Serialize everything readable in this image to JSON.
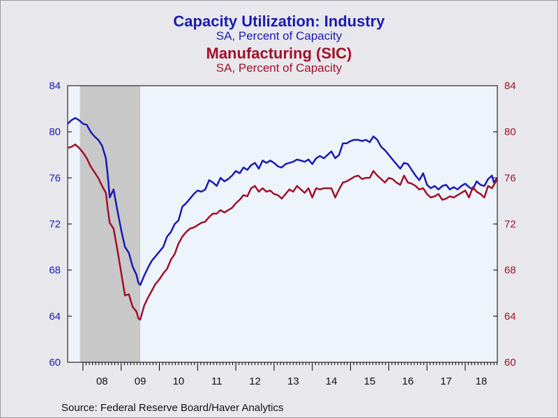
{
  "titles": {
    "line1": "Capacity Utilization: Industry",
    "line2": "SA, Percent of Capacity",
    "line3": "Manufacturing (SIC)",
    "line4": "SA, Percent of Capacity"
  },
  "source": "Source:  Federal Reserve Board/Haver Analytics",
  "colors": {
    "industry": "#1a1ab4",
    "manufacturing": "#a0102a",
    "plot_bg": "#eef4fc",
    "recession": "#c8c8c8"
  },
  "chart_data": {
    "type": "line",
    "x_ticks": [
      "08",
      "09",
      "10",
      "11",
      "12",
      "13",
      "14",
      "15",
      "16",
      "17",
      "18"
    ],
    "x_range": [
      2007.6,
      2018.84
    ],
    "left_axis": {
      "ticks": [
        "60",
        "64",
        "68",
        "72",
        "76",
        "80",
        "84"
      ],
      "ylim": [
        60,
        84
      ]
    },
    "right_axis": {
      "ticks": [
        "60",
        "64",
        "68",
        "72",
        "76",
        "80",
        "84"
      ],
      "ylim": [
        60,
        84
      ]
    },
    "recession": [
      2007.92,
      2009.5
    ],
    "series": [
      {
        "name": "Capacity Utilization: Industry",
        "axis": "left",
        "points": [
          [
            2007.6,
            80.7
          ],
          [
            2007.7,
            81.0
          ],
          [
            2007.8,
            81.2
          ],
          [
            2007.9,
            81.0
          ],
          [
            2008.0,
            80.7
          ],
          [
            2008.1,
            80.6
          ],
          [
            2008.2,
            80.0
          ],
          [
            2008.3,
            79.6
          ],
          [
            2008.4,
            79.3
          ],
          [
            2008.5,
            78.8
          ],
          [
            2008.6,
            77.7
          ],
          [
            2008.65,
            76.2
          ],
          [
            2008.7,
            74.3
          ],
          [
            2008.8,
            75.0
          ],
          [
            2008.9,
            73.2
          ],
          [
            2009.0,
            71.5
          ],
          [
            2009.1,
            70.0
          ],
          [
            2009.2,
            69.5
          ],
          [
            2009.3,
            68.3
          ],
          [
            2009.4,
            67.6
          ],
          [
            2009.45,
            66.9
          ],
          [
            2009.5,
            66.7
          ],
          [
            2009.6,
            67.5
          ],
          [
            2009.7,
            68.2
          ],
          [
            2009.8,
            68.8
          ],
          [
            2009.9,
            69.2
          ],
          [
            2010.0,
            69.6
          ],
          [
            2010.1,
            70.0
          ],
          [
            2010.2,
            70.9
          ],
          [
            2010.3,
            71.3
          ],
          [
            2010.4,
            72.0
          ],
          [
            2010.5,
            72.3
          ],
          [
            2010.6,
            73.5
          ],
          [
            2010.7,
            73.8
          ],
          [
            2010.8,
            74.2
          ],
          [
            2010.9,
            74.6
          ],
          [
            2011.0,
            74.9
          ],
          [
            2011.1,
            74.8
          ],
          [
            2011.2,
            75.0
          ],
          [
            2011.3,
            75.8
          ],
          [
            2011.4,
            75.6
          ],
          [
            2011.5,
            75.3
          ],
          [
            2011.6,
            76.0
          ],
          [
            2011.7,
            75.7
          ],
          [
            2011.8,
            75.9
          ],
          [
            2011.9,
            76.2
          ],
          [
            2012.0,
            76.6
          ],
          [
            2012.1,
            76.4
          ],
          [
            2012.2,
            76.9
          ],
          [
            2012.3,
            76.7
          ],
          [
            2012.4,
            77.1
          ],
          [
            2012.5,
            77.3
          ],
          [
            2012.6,
            76.8
          ],
          [
            2012.7,
            77.5
          ],
          [
            2012.8,
            77.3
          ],
          [
            2012.9,
            77.5
          ],
          [
            2013.0,
            77.3
          ],
          [
            2013.1,
            77.0
          ],
          [
            2013.2,
            76.9
          ],
          [
            2013.3,
            77.2
          ],
          [
            2013.4,
            77.3
          ],
          [
            2013.5,
            77.4
          ],
          [
            2013.6,
            77.6
          ],
          [
            2013.7,
            77.5
          ],
          [
            2013.8,
            77.4
          ],
          [
            2013.9,
            77.6
          ],
          [
            2014.0,
            77.2
          ],
          [
            2014.1,
            77.7
          ],
          [
            2014.2,
            77.9
          ],
          [
            2014.3,
            77.7
          ],
          [
            2014.4,
            78.0
          ],
          [
            2014.5,
            78.3
          ],
          [
            2014.6,
            77.7
          ],
          [
            2014.7,
            78.0
          ],
          [
            2014.8,
            79.0
          ],
          [
            2014.9,
            79.0
          ],
          [
            2015.0,
            79.2
          ],
          [
            2015.1,
            79.3
          ],
          [
            2015.2,
            79.3
          ],
          [
            2015.3,
            79.2
          ],
          [
            2015.4,
            79.3
          ],
          [
            2015.5,
            79.1
          ],
          [
            2015.6,
            79.6
          ],
          [
            2015.7,
            79.3
          ],
          [
            2015.8,
            78.7
          ],
          [
            2015.9,
            78.4
          ],
          [
            2016.0,
            78.0
          ],
          [
            2016.1,
            77.6
          ],
          [
            2016.2,
            77.2
          ],
          [
            2016.3,
            76.8
          ],
          [
            2016.4,
            77.3
          ],
          [
            2016.5,
            77.2
          ],
          [
            2016.6,
            76.7
          ],
          [
            2016.7,
            76.2
          ],
          [
            2016.8,
            75.8
          ],
          [
            2016.9,
            76.4
          ],
          [
            2017.0,
            75.4
          ],
          [
            2017.1,
            75.1
          ],
          [
            2017.2,
            75.3
          ],
          [
            2017.3,
            75.0
          ],
          [
            2017.4,
            75.3
          ],
          [
            2017.5,
            75.4
          ],
          [
            2017.6,
            75.0
          ],
          [
            2017.7,
            75.2
          ],
          [
            2017.8,
            75.0
          ],
          [
            2017.9,
            75.3
          ],
          [
            2018.0,
            75.5
          ],
          [
            2018.1,
            75.2
          ],
          [
            2018.2,
            75.0
          ],
          [
            2018.3,
            75.7
          ],
          [
            2018.4,
            75.4
          ],
          [
            2018.5,
            75.3
          ],
          [
            2018.6,
            75.9
          ],
          [
            2018.7,
            76.2
          ],
          [
            2018.75,
            75.6
          ],
          [
            2018.84,
            76.0
          ]
        ]
      },
      {
        "name": "Manufacturing (SIC)",
        "axis": "right",
        "points": [
          [
            2007.6,
            78.6
          ],
          [
            2007.7,
            78.7
          ],
          [
            2007.8,
            78.9
          ],
          [
            2007.9,
            78.6
          ],
          [
            2008.0,
            78.2
          ],
          [
            2008.1,
            77.7
          ],
          [
            2008.2,
            77.0
          ],
          [
            2008.3,
            76.5
          ],
          [
            2008.4,
            76.0
          ],
          [
            2008.5,
            75.3
          ],
          [
            2008.6,
            74.7
          ],
          [
            2008.65,
            73.3
          ],
          [
            2008.7,
            72.1
          ],
          [
            2008.8,
            71.6
          ],
          [
            2008.9,
            69.8
          ],
          [
            2009.0,
            67.8
          ],
          [
            2009.1,
            65.8
          ],
          [
            2009.2,
            65.9
          ],
          [
            2009.3,
            64.8
          ],
          [
            2009.4,
            64.4
          ],
          [
            2009.45,
            63.8
          ],
          [
            2009.5,
            63.7
          ],
          [
            2009.6,
            64.9
          ],
          [
            2009.7,
            65.6
          ],
          [
            2009.8,
            66.2
          ],
          [
            2009.9,
            66.8
          ],
          [
            2010.0,
            67.2
          ],
          [
            2010.1,
            67.7
          ],
          [
            2010.2,
            68.1
          ],
          [
            2010.3,
            68.9
          ],
          [
            2010.4,
            69.4
          ],
          [
            2010.5,
            70.3
          ],
          [
            2010.6,
            70.9
          ],
          [
            2010.7,
            71.3
          ],
          [
            2010.8,
            71.6
          ],
          [
            2010.9,
            71.7
          ],
          [
            2011.0,
            71.9
          ],
          [
            2011.1,
            72.1
          ],
          [
            2011.2,
            72.2
          ],
          [
            2011.3,
            72.6
          ],
          [
            2011.4,
            72.9
          ],
          [
            2011.5,
            72.9
          ],
          [
            2011.6,
            73.2
          ],
          [
            2011.7,
            73.0
          ],
          [
            2011.8,
            73.2
          ],
          [
            2011.9,
            73.4
          ],
          [
            2012.0,
            73.8
          ],
          [
            2012.1,
            74.1
          ],
          [
            2012.2,
            74.5
          ],
          [
            2012.3,
            74.4
          ],
          [
            2012.4,
            75.1
          ],
          [
            2012.5,
            75.3
          ],
          [
            2012.6,
            74.8
          ],
          [
            2012.7,
            75.1
          ],
          [
            2012.8,
            74.8
          ],
          [
            2012.9,
            74.9
          ],
          [
            2013.0,
            74.6
          ],
          [
            2013.1,
            74.5
          ],
          [
            2013.2,
            74.2
          ],
          [
            2013.3,
            74.6
          ],
          [
            2013.4,
            75.0
          ],
          [
            2013.5,
            74.8
          ],
          [
            2013.6,
            75.3
          ],
          [
            2013.7,
            75.0
          ],
          [
            2013.8,
            74.7
          ],
          [
            2013.9,
            75.1
          ],
          [
            2014.0,
            74.3
          ],
          [
            2014.1,
            75.1
          ],
          [
            2014.2,
            75.0
          ],
          [
            2014.3,
            75.1
          ],
          [
            2014.4,
            75.1
          ],
          [
            2014.5,
            75.1
          ],
          [
            2014.6,
            74.3
          ],
          [
            2014.7,
            75.0
          ],
          [
            2014.8,
            75.6
          ],
          [
            2014.9,
            75.7
          ],
          [
            2015.0,
            75.9
          ],
          [
            2015.1,
            76.1
          ],
          [
            2015.2,
            76.2
          ],
          [
            2015.3,
            75.9
          ],
          [
            2015.4,
            76.0
          ],
          [
            2015.5,
            76.0
          ],
          [
            2015.6,
            76.6
          ],
          [
            2015.7,
            76.2
          ],
          [
            2015.8,
            75.9
          ],
          [
            2015.9,
            75.6
          ],
          [
            2016.0,
            76.0
          ],
          [
            2016.1,
            75.9
          ],
          [
            2016.2,
            75.6
          ],
          [
            2016.3,
            75.4
          ],
          [
            2016.4,
            76.2
          ],
          [
            2016.5,
            75.6
          ],
          [
            2016.6,
            75.5
          ],
          [
            2016.7,
            75.3
          ],
          [
            2016.8,
            75.0
          ],
          [
            2016.9,
            75.1
          ],
          [
            2017.0,
            74.6
          ],
          [
            2017.1,
            74.3
          ],
          [
            2017.2,
            74.4
          ],
          [
            2017.3,
            74.6
          ],
          [
            2017.4,
            74.1
          ],
          [
            2017.5,
            74.2
          ],
          [
            2017.6,
            74.4
          ],
          [
            2017.7,
            74.3
          ],
          [
            2017.8,
            74.5
          ],
          [
            2017.9,
            74.7
          ],
          [
            2018.0,
            74.9
          ],
          [
            2018.1,
            74.3
          ],
          [
            2018.2,
            75.2
          ],
          [
            2018.3,
            74.8
          ],
          [
            2018.4,
            74.6
          ],
          [
            2018.5,
            74.3
          ],
          [
            2018.6,
            75.3
          ],
          [
            2018.7,
            75.1
          ],
          [
            2018.75,
            75.4
          ],
          [
            2018.84,
            75.9
          ]
        ]
      }
    ]
  }
}
